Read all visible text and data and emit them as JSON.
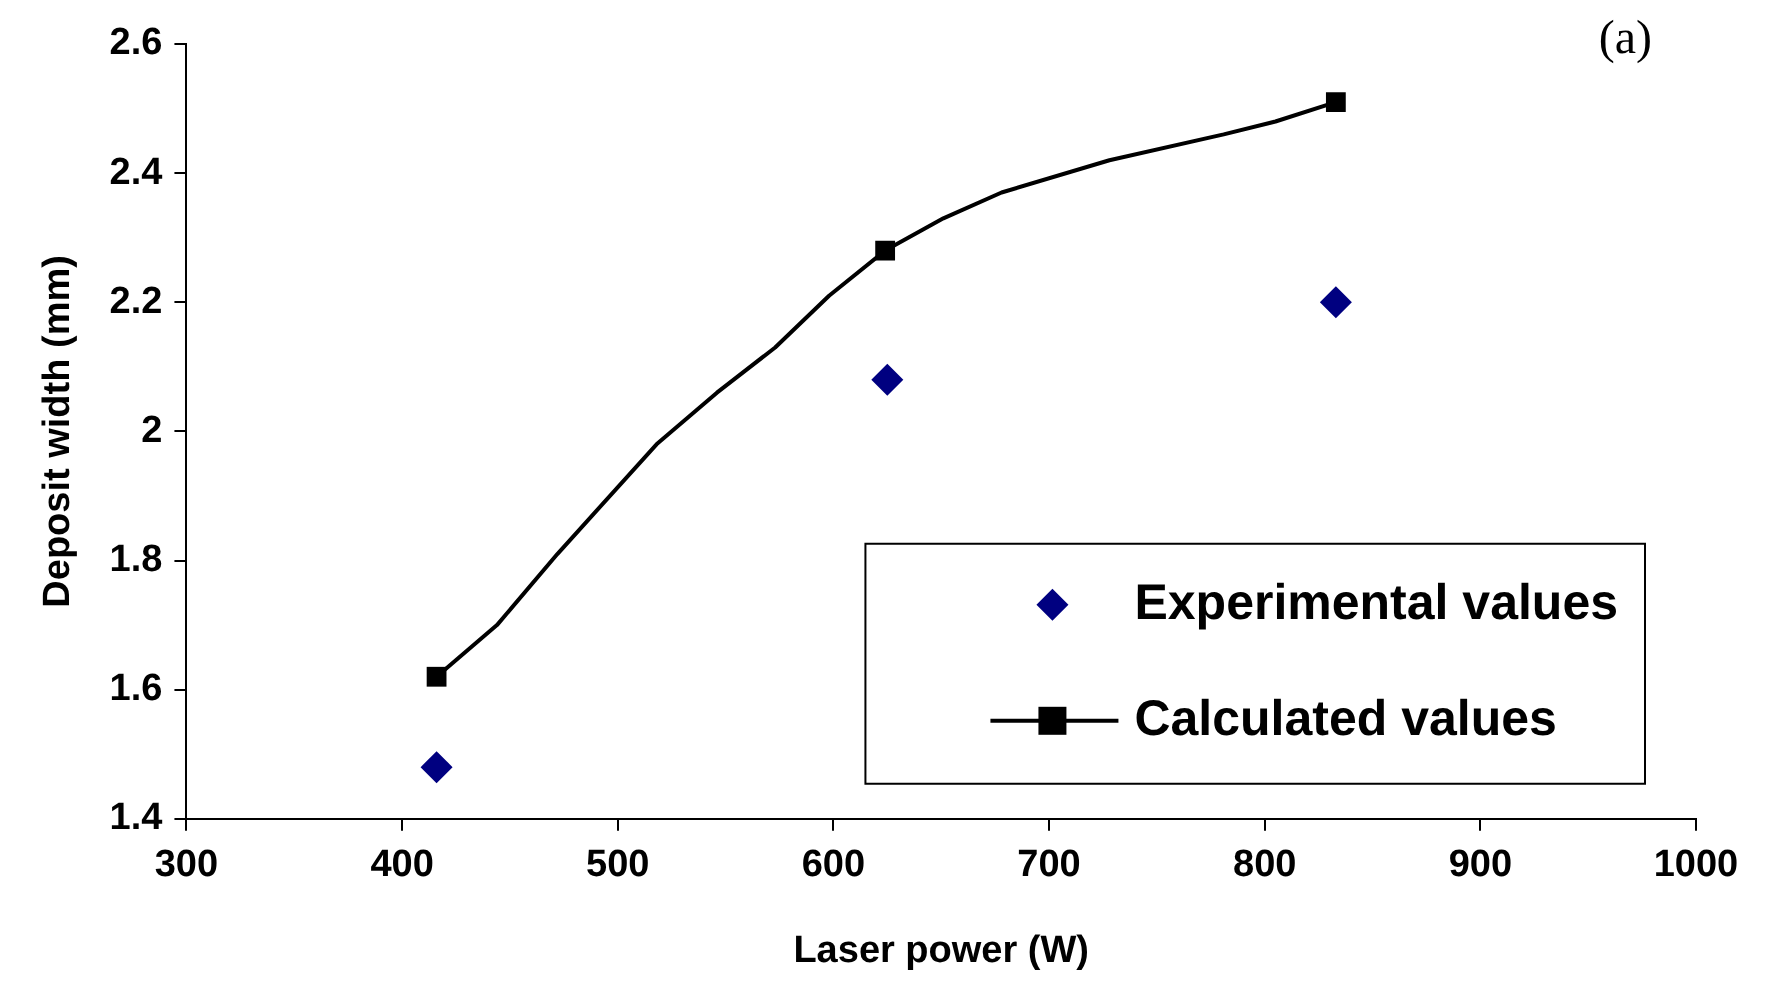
{
  "chart_data": {
    "type": "scatter",
    "xlabel": "Laser power (W)",
    "ylabel": "Deposit width (mm)",
    "annotations": [
      "(a)"
    ],
    "xlim": [
      300,
      1000
    ],
    "xticks": [
      300,
      400,
      500,
      600,
      700,
      800,
      900,
      1000
    ],
    "ylim": [
      1.4,
      2.6
    ],
    "yticks": [
      1.4,
      1.6,
      1.8,
      2,
      2.2,
      2.4,
      2.6
    ],
    "grid": false,
    "legend": "bottom right",
    "series": [
      {
        "name": "Experimental values",
        "type": "scatter",
        "marker": "diamond",
        "color": "#000080",
        "x": [
          416,
          625,
          833
        ],
        "values": [
          1.48,
          2.08,
          2.2
        ]
      },
      {
        "name": "Calculated values",
        "type": "line",
        "marker": "none",
        "line_style": "solid",
        "color": "#000000",
        "x": [
          416,
          444,
          472,
          518,
          546,
          573,
          598,
          624,
          651,
          678,
          728,
          781,
          805,
          833
        ],
        "values": [
          1.62,
          1.7,
          1.81,
          1.98,
          2.06,
          2.13,
          2.21,
          2.28,
          2.33,
          2.37,
          2.42,
          2.46,
          2.48,
          2.51
        ]
      },
      {
        "type": "scatter",
        "marker": "square",
        "color": "#000000",
        "x": [
          416,
          624,
          833
        ],
        "values": [
          1.62,
          2.28,
          2.51
        ]
      }
    ]
  }
}
